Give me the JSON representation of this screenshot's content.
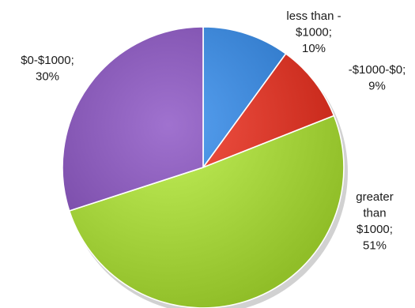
{
  "chart_data": {
    "type": "pie",
    "title": "",
    "slices": [
      {
        "label_lines": [
          "less than -",
          "$1000;",
          "10%"
        ],
        "value": 10,
        "color": "#3d86d6"
      },
      {
        "label_lines": [
          "-$1000-$0;",
          "9%"
        ],
        "value": 9,
        "color": "#d93a2c"
      },
      {
        "label_lines": [
          "greater",
          "than",
          "$1000;",
          "51%"
        ],
        "value": 51,
        "color": "#a6d43e"
      },
      {
        "label_lines": [
          "$0-$1000;",
          "30%"
        ],
        "value": 30,
        "color": "#8456b3"
      }
    ],
    "legend": "none",
    "start_angle_deg": 0,
    "direction": "clockwise"
  }
}
